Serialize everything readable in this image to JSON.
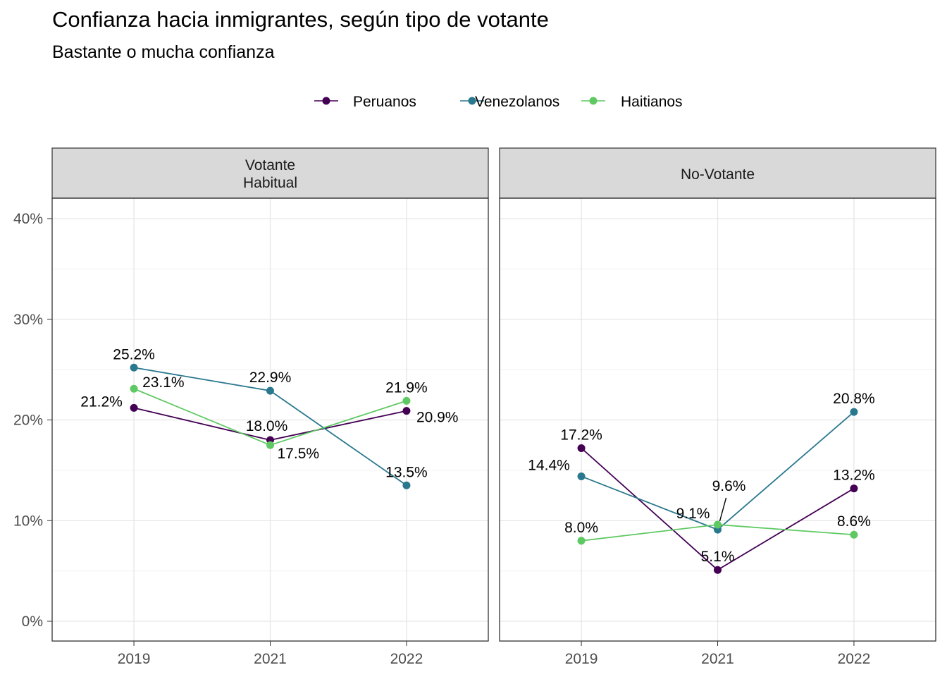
{
  "title": "Confianza hacia inmigrantes, según tipo de votante",
  "subtitle": "Bastante o mucha confianza",
  "legend": [
    {
      "name": "Peruanos",
      "color": "#440154"
    },
    {
      "name": "Venezolanos",
      "color": "#2A788E"
    },
    {
      "name": "Haitianos",
      "color": "#5EC962"
    }
  ],
  "chart_data": {
    "type": "line",
    "x": [
      "2019",
      "2021",
      "2022"
    ],
    "ylim": [
      -0.02,
      0.42
    ],
    "yticks": [
      0,
      0.1,
      0.2,
      0.3,
      0.4
    ],
    "ytick_labels": [
      "0%",
      "10%",
      "20%",
      "30%",
      "40%"
    ],
    "grid": true,
    "legend_position": "top",
    "panels": [
      {
        "strip": [
          "Votante",
          "Habitual"
        ],
        "series": [
          {
            "name": "Peruanos",
            "values": [
              0.212,
              0.18,
              0.209
            ],
            "labels": [
              "21.2%",
              "18.0%",
              "20.9%"
            ]
          },
          {
            "name": "Venezolanos",
            "values": [
              0.252,
              0.229,
              0.135
            ],
            "labels": [
              "25.2%",
              "22.9%",
              "13.5%"
            ]
          },
          {
            "name": "Haitianos",
            "values": [
              0.231,
              0.175,
              0.219
            ],
            "labels": [
              "23.1%",
              "17.5%",
              "21.9%"
            ]
          }
        ]
      },
      {
        "strip": [
          "No-Votante"
        ],
        "series": [
          {
            "name": "Peruanos",
            "values": [
              0.172,
              0.051,
              0.132
            ],
            "labels": [
              "17.2%",
              "5.1%",
              "13.2%"
            ]
          },
          {
            "name": "Venezolanos",
            "values": [
              0.144,
              0.091,
              0.208
            ],
            "labels": [
              "14.4%",
              "9.1%",
              "20.8%"
            ]
          },
          {
            "name": "Haitianos",
            "values": [
              0.08,
              0.096,
              0.086
            ],
            "labels": [
              "8.0%",
              "9.6%",
              "8.6%"
            ]
          }
        ]
      }
    ]
  }
}
